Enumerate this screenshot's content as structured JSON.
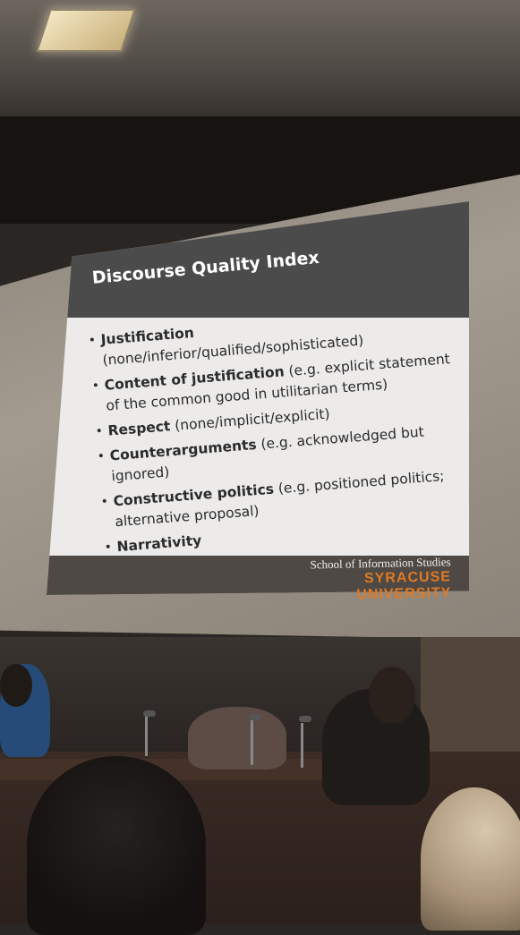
{
  "slide": {
    "title": "Discourse Quality Index",
    "bullets": [
      {
        "term": "Justification",
        "detail": "(none/inferior/qualified/sophisticated)"
      },
      {
        "term": "Content of justification",
        "detail": "(e.g. explicit statement of the common good in utilitarian terms)"
      },
      {
        "term": "Respect",
        "detail": "(none/implicit/explicit)"
      },
      {
        "term": "Counterarguments",
        "detail": "(e.g. acknowledged but ignored)"
      },
      {
        "term": "Constructive politics",
        "detail": "(e.g. positioned politics; alternative proposal)"
      },
      {
        "term": "Narrativity",
        "detail": ""
      }
    ],
    "org_line1": "School of Information Studies",
    "org_line2": "SYRACUSE UNIVERSITY"
  },
  "colors": {
    "slide_header": "#4b4b4b",
    "slide_body": "#ecebea",
    "accent_orange": "#e07a24"
  }
}
